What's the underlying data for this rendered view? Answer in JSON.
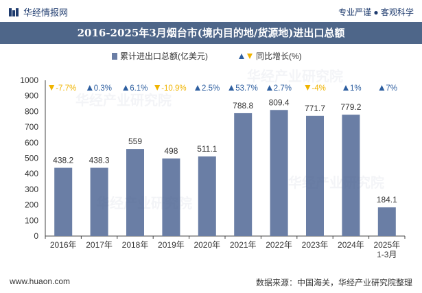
{
  "header": {
    "site_name": "华经情报网",
    "tagline": "专业严谨 ● 客观科学",
    "title": "2016-2025年3月烟台市(境内目的地/货源地)进出口总额"
  },
  "footer": {
    "website": "www.huaon.com",
    "source": "数据来源：中国海关，华经产业研究院整理"
  },
  "watermark": "华经产业研究院",
  "colors": {
    "bar": "#6a7ea5",
    "up": "#2e5fa0",
    "down": "#f0b400",
    "title_bg": "#4e6689",
    "brand": "#1e3b6e"
  },
  "chart_data": {
    "type": "bar",
    "categories": [
      "2016年",
      "2017年",
      "2018年",
      "2019年",
      "2020年",
      "2021年",
      "2022年",
      "2023年",
      "2024年",
      "2025年\n1-3月"
    ],
    "series": [
      {
        "name": "累计进出口总额(亿美元)",
        "values": [
          438.2,
          438.3,
          559,
          498,
          511.1,
          788.8,
          809.4,
          771.7,
          779.2,
          184.1
        ]
      }
    ],
    "value_labels": [
      "438.2",
      "438.3",
      "559",
      "498",
      "511.1",
      "788.8",
      "809.4",
      "771.7",
      "779.2",
      "184.1"
    ],
    "growth": {
      "name": "同比增长(%)",
      "values": [
        -7.7,
        0.3,
        6.1,
        -10.9,
        2.5,
        53.7,
        2.7,
        -4,
        1,
        7
      ],
      "labels": [
        "-7.7%",
        "0.3%",
        "6.1%",
        "-10.9%",
        "2.5%",
        "53.7%",
        "2.7%",
        "-4%",
        "1%",
        "7%"
      ]
    },
    "ylim": [
      0,
      1000
    ],
    "yticks": [
      0,
      100,
      200,
      300,
      400,
      500,
      600,
      700,
      800,
      900,
      1000
    ],
    "legend_position": "top-center",
    "grid": false
  }
}
